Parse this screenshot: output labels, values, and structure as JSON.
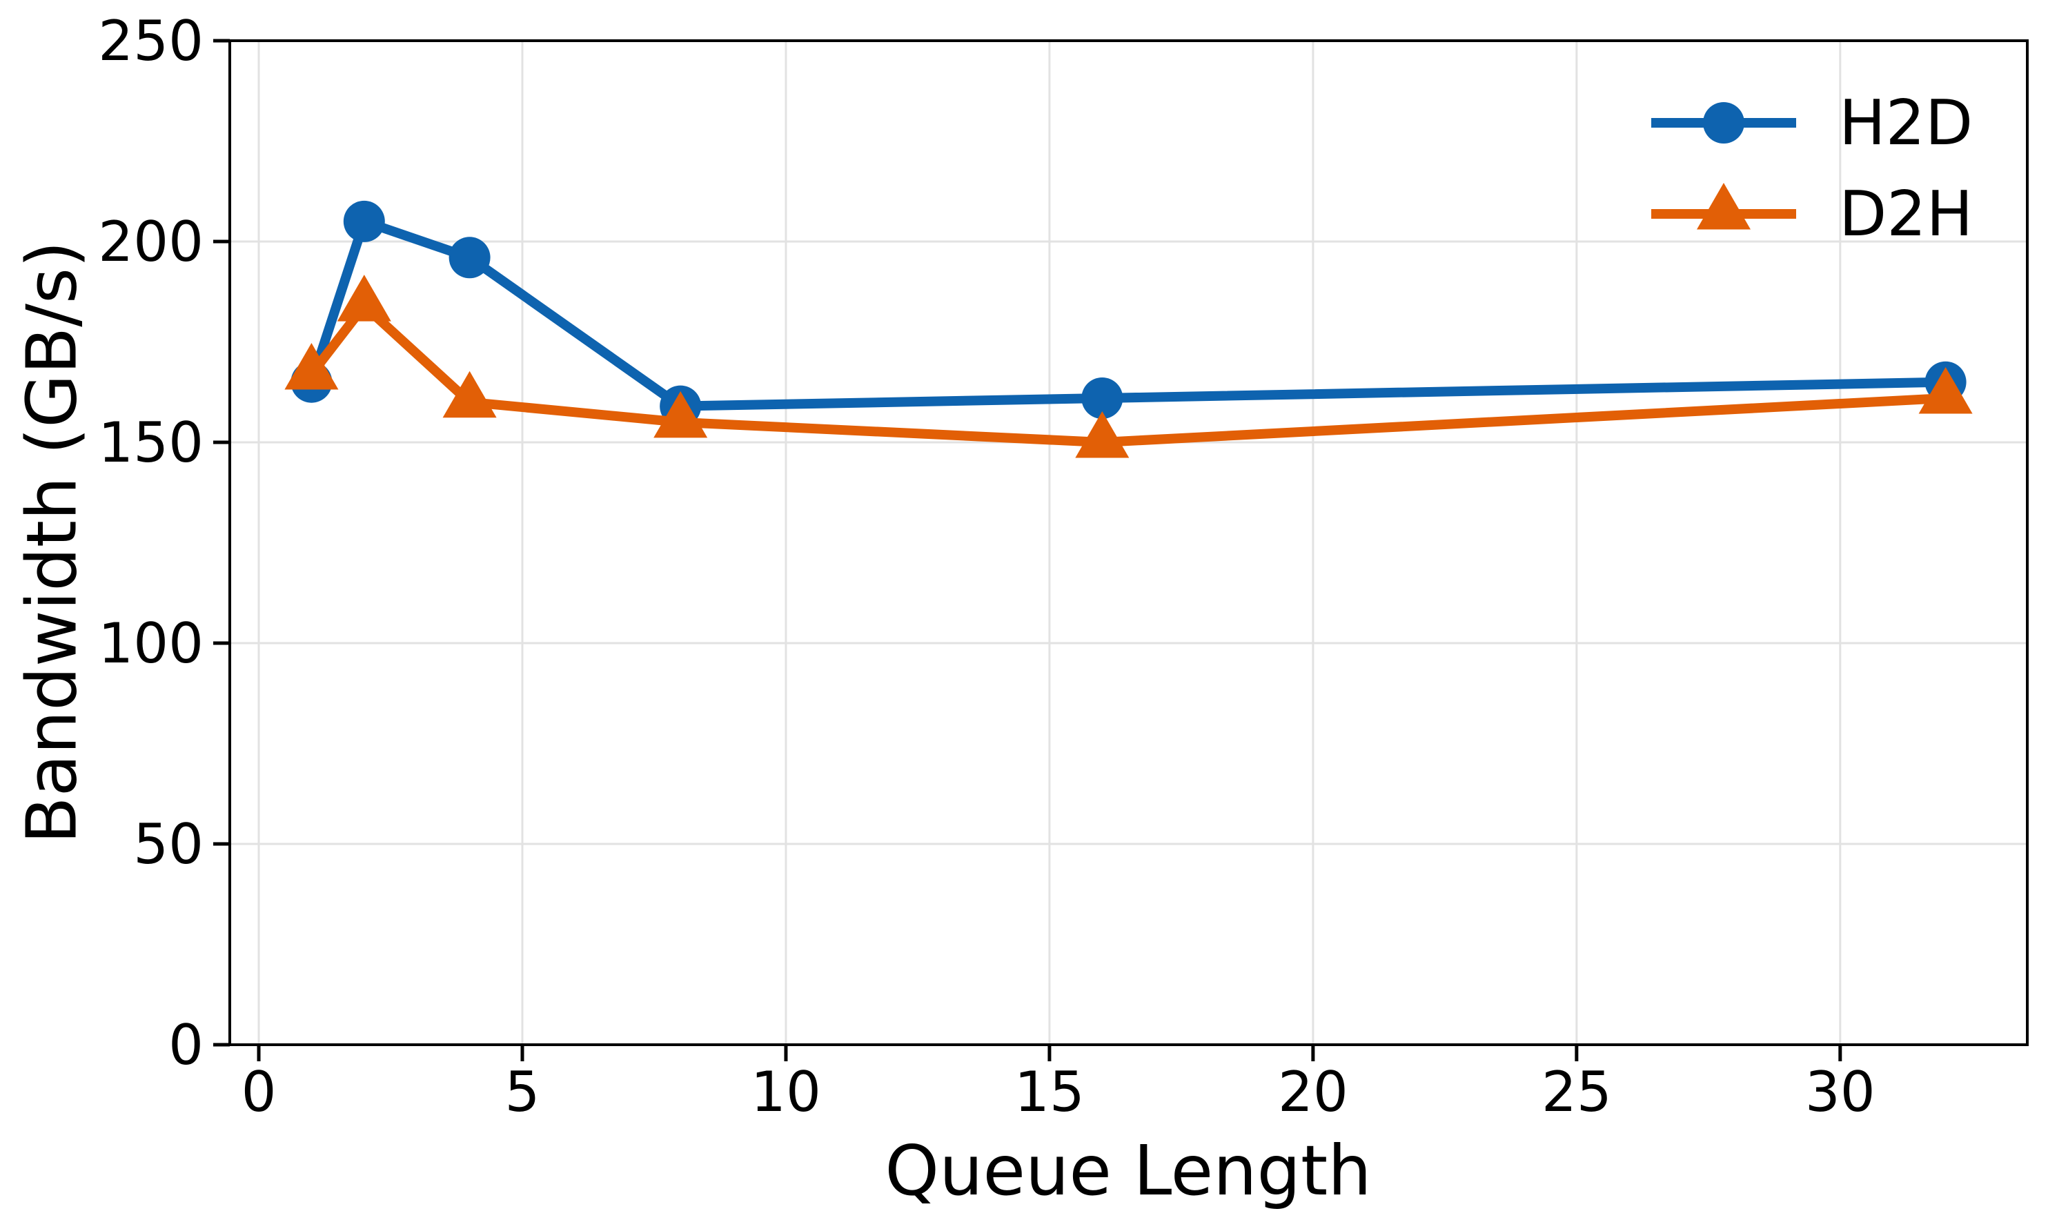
{
  "figure": {
    "background": "#ffffff",
    "xlabel": "Queue Length",
    "ylabel": "Bandwidth (GB/s)"
  },
  "chart_data": {
    "type": "line",
    "title": "",
    "xlabel": "Queue Length",
    "ylabel": "Bandwidth (GB/s)",
    "x": [
      1,
      2,
      4,
      8,
      16,
      32
    ],
    "series": [
      {
        "name": "H2D",
        "color": "#0e63af",
        "marker": "circle",
        "values": [
          165,
          205,
          196,
          159,
          161,
          165
        ]
      },
      {
        "name": "D2H",
        "color": "#e25f06",
        "marker": "triangle",
        "values": [
          167,
          184,
          160,
          155,
          150,
          161
        ]
      }
    ],
    "x_ticks": [
      0,
      5,
      10,
      15,
      20,
      25,
      30
    ],
    "y_ticks": [
      0,
      50,
      100,
      150,
      200,
      250
    ],
    "xlim": [
      -0.55,
      33.55
    ],
    "ylim": [
      0,
      250
    ],
    "grid": true,
    "grid_color": "#e2e2e2",
    "axis_color": "#000000",
    "legend_position": "upper right",
    "legend_labels": [
      "H2D",
      "D2H"
    ]
  }
}
